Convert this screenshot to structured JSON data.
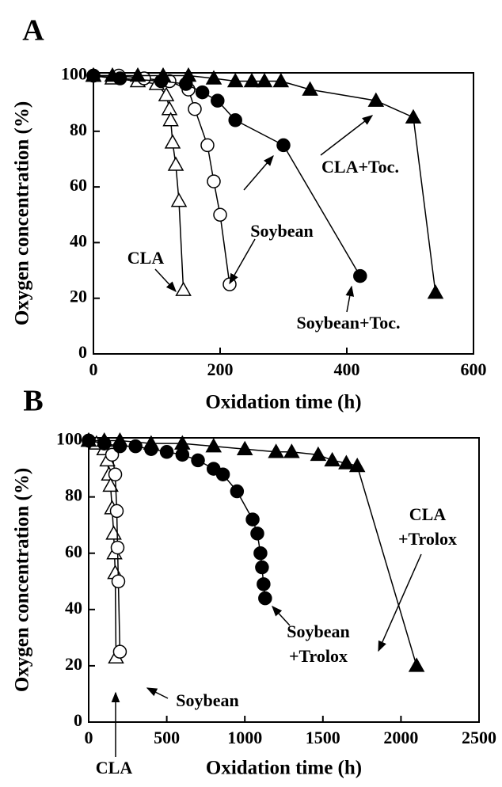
{
  "chart_data": [
    {
      "type": "line",
      "label": "A",
      "x_label": "Oxidation time (h)",
      "y_label": "Oxygen concentration (%)",
      "xlim": [
        0,
        600
      ],
      "xticks": [
        0,
        200,
        400,
        600
      ],
      "ylim": [
        0,
        101
      ],
      "yticks": [
        0,
        20,
        40,
        60,
        80,
        100
      ],
      "series": [
        {
          "name": "CLA",
          "color": "#000000",
          "marker": "triangle",
          "filled": false,
          "x": [
            0,
            30,
            70,
            100,
            115,
            120,
            122,
            125,
            130,
            135,
            142
          ],
          "values": [
            100,
            99,
            98,
            97,
            93,
            88,
            84,
            76,
            68,
            55,
            23
          ]
        },
        {
          "name": "Soybean",
          "color": "#000000",
          "marker": "circle",
          "filled": false,
          "x": [
            0,
            40,
            80,
            120,
            150,
            160,
            180,
            190,
            200,
            215
          ],
          "values": [
            100,
            100,
            99,
            98,
            95,
            88,
            75,
            62,
            50,
            25
          ]
        },
        {
          "name": "Soybean+Toc.",
          "color": "#000000",
          "marker": "circle",
          "filled": true,
          "x": [
            0,
            42,
            107,
            146,
            172,
            196,
            224,
            300,
            421
          ],
          "values": [
            100,
            99,
            98,
            97,
            94,
            91,
            84,
            75,
            28
          ]
        },
        {
          "name": "CLA+Toc.",
          "color": "#000000",
          "marker": "triangle",
          "filled": true,
          "x": [
            0,
            30,
            70,
            110,
            150,
            190,
            224,
            250,
            270,
            296,
            342,
            446,
            505,
            540
          ],
          "values": [
            100,
            100,
            100,
            100,
            100,
            99,
            98,
            98,
            98,
            98,
            95,
            91,
            85,
            22
          ]
        }
      ],
      "annotations": [
        {
          "lines": [
            "CLA"
          ]
        },
        {
          "lines": [
            "Soybean"
          ]
        },
        {
          "lines": [
            "CLA+Toc."
          ]
        },
        {
          "lines": [
            "Soybean+Toc."
          ]
        }
      ]
    },
    {
      "type": "line",
      "label": "B",
      "x_label": "Oxidation time (h)",
      "y_label": "Oxygen concentration (%)",
      "xlim": [
        0,
        2500
      ],
      "xticks": [
        0,
        500,
        1000,
        1500,
        2000,
        2500
      ],
      "ylim": [
        0,
        101
      ],
      "yticks": [
        0,
        20,
        40,
        60,
        80,
        100
      ],
      "series": [
        {
          "name": "CLA",
          "color": "#000000",
          "marker": "triangle",
          "filled": false,
          "x": [
            0,
            50,
            100,
            120,
            130,
            140,
            150,
            160,
            165,
            170,
            175
          ],
          "values": [
            100,
            99,
            97,
            93,
            88,
            84,
            76,
            67,
            60,
            53,
            23
          ]
        },
        {
          "name": "Soybean",
          "color": "#000000",
          "marker": "circle",
          "filled": false,
          "x": [
            0,
            100,
            150,
            170,
            180,
            185,
            190,
            200
          ],
          "values": [
            100,
            99,
            95,
            88,
            75,
            62,
            50,
            25
          ]
        },
        {
          "name": "Soybean+Trolox",
          "color": "#000000",
          "marker": "circle",
          "filled": true,
          "x": [
            0,
            100,
            200,
            300,
            400,
            500,
            600,
            700,
            800,
            860,
            950,
            1050,
            1080,
            1100,
            1110,
            1120,
            1130
          ],
          "values": [
            100,
            99,
            98,
            98,
            97,
            96,
            95,
            93,
            90,
            88,
            82,
            72,
            67,
            60,
            55,
            49,
            44
          ]
        },
        {
          "name": "CLA+Trolox",
          "color": "#000000",
          "marker": "triangle",
          "filled": true,
          "x": [
            0,
            100,
            200,
            400,
            600,
            800,
            1000,
            1200,
            1300,
            1470,
            1560,
            1650,
            1720,
            2100
          ],
          "values": [
            100,
            100,
            100,
            99,
            99,
            98,
            97,
            96,
            96,
            95,
            93,
            92,
            91,
            20
          ]
        }
      ],
      "annotations": [
        {
          "lines": [
            "CLA"
          ]
        },
        {
          "lines": [
            "Soybean"
          ]
        },
        {
          "lines": [
            "Soybean",
            "+Trolox"
          ]
        },
        {
          "lines": [
            "CLA",
            "+Trolox"
          ]
        }
      ]
    }
  ]
}
